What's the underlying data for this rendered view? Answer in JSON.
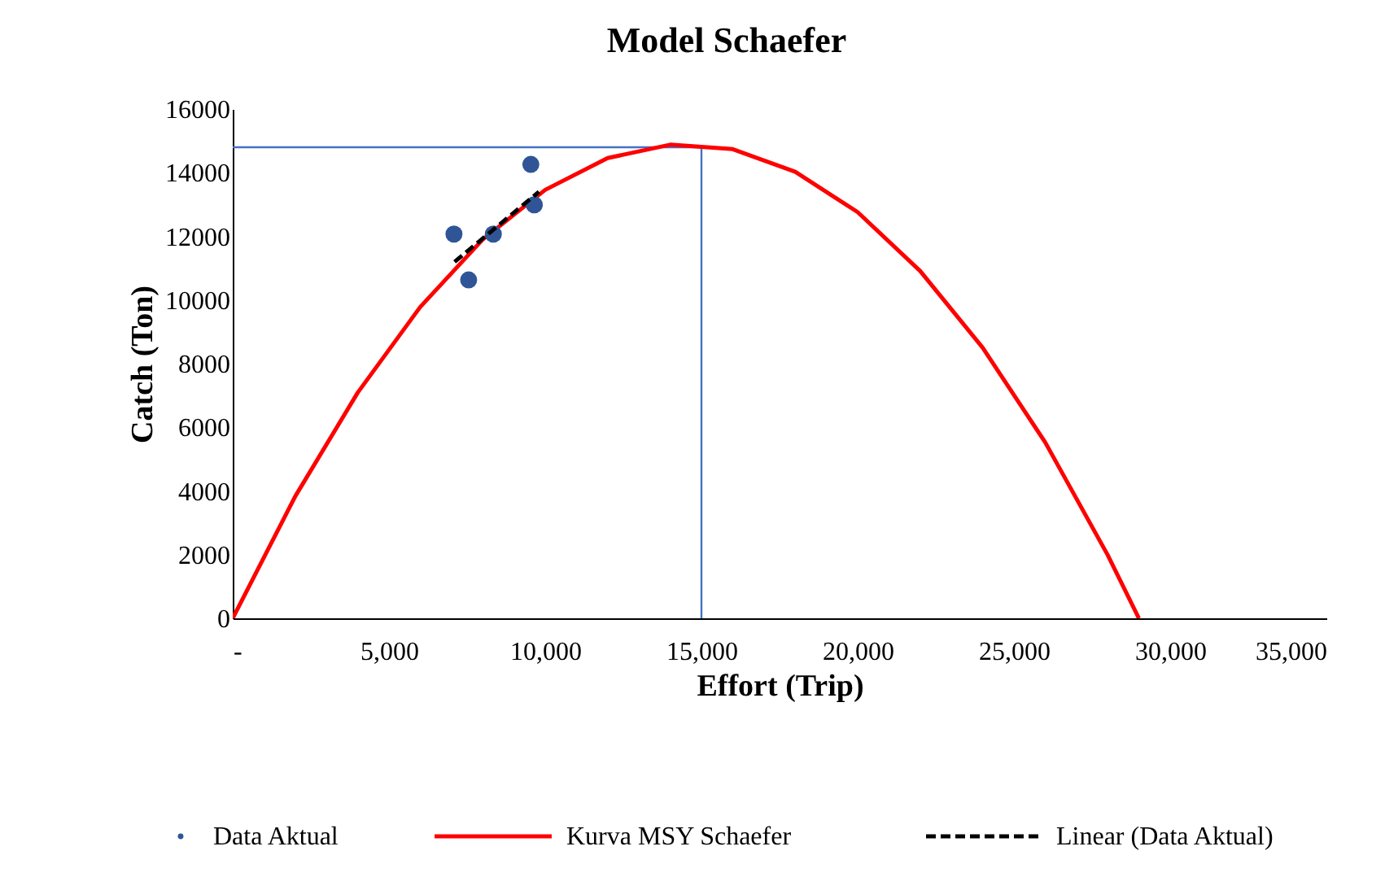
{
  "chart_data": {
    "type": "line",
    "title": "Model Schaefer",
    "xlabel": "Effort (Trip)",
    "ylabel": "Catch (Ton)",
    "xlim": [
      0,
      35000
    ],
    "ylim": [
      0,
      16000
    ],
    "xticks": [
      {
        "value": 0,
        "label": "-"
      },
      {
        "value": 5000,
        "label": "5,000"
      },
      {
        "value": 10000,
        "label": "10,000"
      },
      {
        "value": 15000,
        "label": "15,000"
      },
      {
        "value": 20000,
        "label": "20,000"
      },
      {
        "value": 25000,
        "label": "25,000"
      },
      {
        "value": 30000,
        "label": "30,000"
      },
      {
        "value": 35000,
        "label": "35,000"
      }
    ],
    "yticks": [
      0,
      2000,
      4000,
      6000,
      8000,
      10000,
      12000,
      14000,
      16000
    ],
    "grid": false,
    "legend": "bottom",
    "series": [
      {
        "color": "#4472c4",
        "line_style": "solid",
        "x": [
          0,
          15000,
          15000
        ],
        "values": [
          14800,
          14800,
          0
        ]
      },
      {
        "name": "Kurva MSY Schaefer",
        "color": "#ff0000",
        "line_style": "solid",
        "x": [
          0,
          2000,
          4000,
          6000,
          8000,
          10000,
          12000,
          14000,
          16000,
          18000,
          20000,
          22000,
          24000,
          26000,
          28000,
          29000
        ],
        "values": [
          0,
          3830,
          7090,
          9780,
          11900,
          13460,
          14460,
          14880,
          14740,
          14030,
          12760,
          10910,
          8500,
          5530,
          1990,
          0
        ]
      },
      {
        "type": "scatter",
        "name": "Data Aktual",
        "color": "#2f5597",
        "marker": "circle",
        "x": [
          7080,
          7550,
          8340,
          9540,
          9650
        ],
        "values": [
          12070,
          10630,
          12070,
          14260,
          12990
        ]
      },
      {
        "name": "Linear (Data Aktual)",
        "color": "#000000",
        "line_style": "dashed",
        "x": [
          7100,
          9800
        ],
        "values": [
          11200,
          13400
        ]
      }
    ]
  }
}
